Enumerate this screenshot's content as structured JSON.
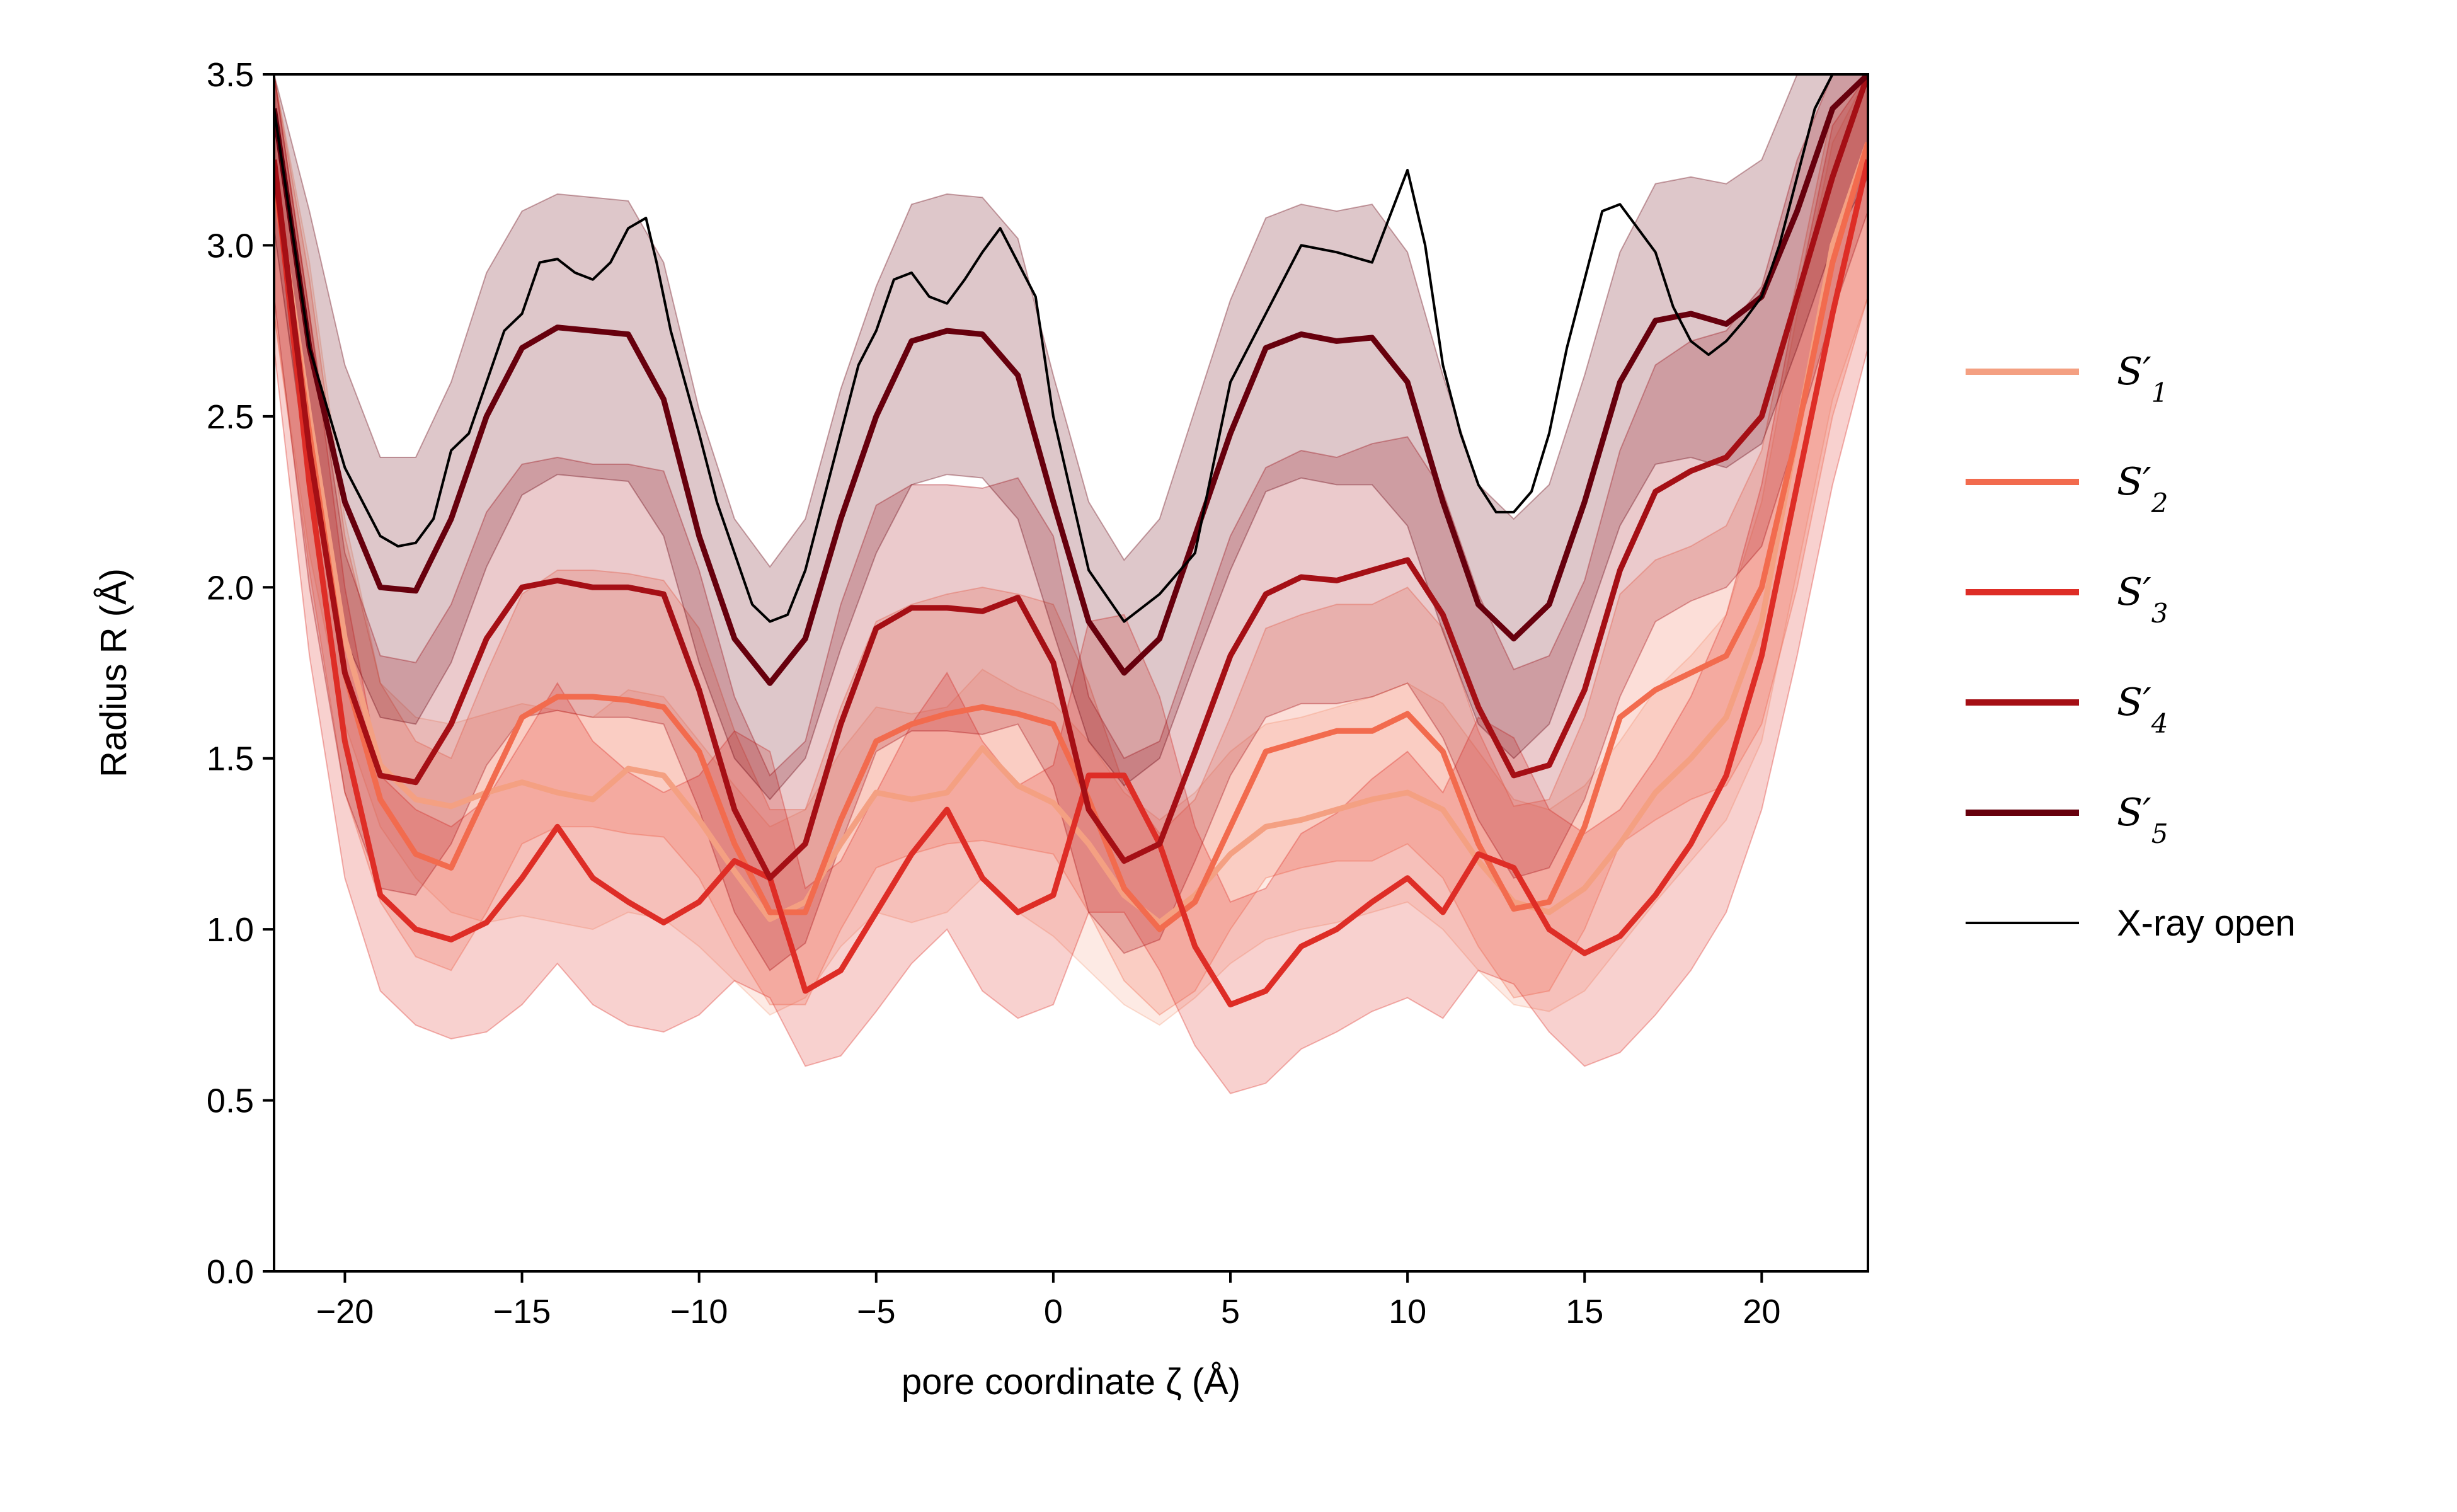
{
  "chart_data": {
    "type": "line",
    "xlabel": "pore coordinate ζ (Å)",
    "ylabel": "Radius R (Å)",
    "xlim": [
      -22,
      23
    ],
    "ylim": [
      0.0,
      3.5
    ],
    "xticks": [
      "−20",
      "−15",
      "−10",
      "−5",
      "0",
      "5",
      "10",
      "15",
      "20"
    ],
    "yticks": [
      "0.0",
      "0.5",
      "1.0",
      "1.5",
      "2.0",
      "2.5",
      "3.0",
      "3.5"
    ],
    "grid": false,
    "legend_position": "right",
    "band_alpha": 0.22,
    "series": [
      {
        "name": "S′1",
        "label_main": "S′",
        "label_sub": "1",
        "color": "#f4a082",
        "band": true,
        "x": [
          -22,
          -21,
          -20,
          -19,
          -18,
          -17,
          -16,
          -15,
          -14,
          -13,
          -12,
          -11,
          -10,
          -9,
          -8,
          -7,
          -6,
          -5,
          -4,
          -3,
          -2,
          -1,
          0,
          1,
          2,
          3,
          4,
          5,
          6,
          7,
          8,
          9,
          10,
          11,
          12,
          13,
          14,
          15,
          16,
          17,
          18,
          19,
          20,
          21,
          22,
          23
        ],
        "y": [
          3.2,
          2.5,
          1.85,
          1.48,
          1.38,
          1.36,
          1.4,
          1.43,
          1.4,
          1.38,
          1.47,
          1.45,
          1.32,
          1.17,
          1.03,
          1.08,
          1.25,
          1.4,
          1.38,
          1.4,
          1.53,
          1.42,
          1.37,
          1.25,
          1.1,
          1.02,
          1.1,
          1.22,
          1.3,
          1.32,
          1.35,
          1.38,
          1.4,
          1.35,
          1.2,
          1.08,
          1.05,
          1.12,
          1.25,
          1.4,
          1.5,
          1.62,
          1.9,
          2.45,
          3.0,
          3.3
        ],
        "lower": [
          2.8,
          2.1,
          1.6,
          1.3,
          1.15,
          1.05,
          1.02,
          1.04,
          1.02,
          1.0,
          1.05,
          1.03,
          0.95,
          0.85,
          0.75,
          0.8,
          0.95,
          1.05,
          1.02,
          1.05,
          1.15,
          1.05,
          0.98,
          0.88,
          0.78,
          0.72,
          0.8,
          0.9,
          0.97,
          1.0,
          1.02,
          1.05,
          1.08,
          1.0,
          0.88,
          0.78,
          0.76,
          0.82,
          0.95,
          1.08,
          1.2,
          1.32,
          1.55,
          2.05,
          2.55,
          2.85
        ],
        "upper": [
          3.5,
          2.95,
          2.2,
          1.72,
          1.62,
          1.6,
          1.63,
          1.66,
          1.64,
          1.62,
          1.7,
          1.68,
          1.55,
          1.42,
          1.3,
          1.35,
          1.52,
          1.65,
          1.63,
          1.65,
          1.76,
          1.7,
          1.66,
          1.55,
          1.4,
          1.32,
          1.4,
          1.52,
          1.6,
          1.62,
          1.65,
          1.68,
          1.72,
          1.66,
          1.52,
          1.38,
          1.35,
          1.42,
          1.55,
          1.7,
          1.8,
          1.92,
          2.25,
          2.8,
          3.3,
          3.5
        ]
      },
      {
        "name": "S′2",
        "label_main": "S′",
        "label_sub": "2",
        "color": "#f26b4e",
        "band": true,
        "x": [
          -22,
          -21,
          -20,
          -19,
          -18,
          -17,
          -16,
          -15,
          -14,
          -13,
          -12,
          -11,
          -10,
          -9,
          -8,
          -7,
          -6,
          -5,
          -4,
          -3,
          -2,
          -1,
          0,
          1,
          2,
          3,
          4,
          5,
          6,
          7,
          8,
          9,
          10,
          11,
          12,
          13,
          14,
          15,
          16,
          17,
          18,
          19,
          20,
          21,
          22,
          23
        ],
        "y": [
          3.2,
          2.45,
          1.75,
          1.38,
          1.22,
          1.18,
          1.4,
          1.62,
          1.68,
          1.68,
          1.67,
          1.65,
          1.52,
          1.25,
          1.05,
          1.05,
          1.32,
          1.55,
          1.6,
          1.63,
          1.65,
          1.63,
          1.6,
          1.38,
          1.12,
          1.0,
          1.08,
          1.3,
          1.52,
          1.55,
          1.58,
          1.58,
          1.63,
          1.52,
          1.25,
          1.06,
          1.08,
          1.3,
          1.62,
          1.7,
          1.75,
          1.8,
          2.0,
          2.45,
          2.95,
          3.3
        ],
        "lower": [
          2.8,
          2.05,
          1.4,
          1.08,
          0.92,
          0.88,
          1.05,
          1.25,
          1.3,
          1.3,
          1.28,
          1.27,
          1.15,
          0.95,
          0.78,
          0.78,
          1.0,
          1.18,
          1.22,
          1.25,
          1.26,
          1.24,
          1.22,
          1.05,
          0.85,
          0.75,
          0.82,
          1.0,
          1.15,
          1.18,
          1.2,
          1.2,
          1.25,
          1.15,
          0.95,
          0.8,
          0.82,
          1.0,
          1.25,
          1.32,
          1.38,
          1.42,
          1.6,
          2.0,
          2.5,
          2.85
        ],
        "upper": [
          3.5,
          2.9,
          2.15,
          1.72,
          1.55,
          1.5,
          1.75,
          1.98,
          2.05,
          2.05,
          2.04,
          2.02,
          1.88,
          1.58,
          1.35,
          1.35,
          1.65,
          1.9,
          1.95,
          1.98,
          2.0,
          1.98,
          1.95,
          1.72,
          1.42,
          1.28,
          1.38,
          1.62,
          1.88,
          1.92,
          1.95,
          1.95,
          2.0,
          1.88,
          1.58,
          1.36,
          1.38,
          1.62,
          1.98,
          2.08,
          2.12,
          2.18,
          2.4,
          2.9,
          3.4,
          3.5
        ]
      },
      {
        "name": "S′3",
        "label_main": "S′",
        "label_sub": "3",
        "color": "#de2d26",
        "band": true,
        "x": [
          -22,
          -21,
          -20,
          -19,
          -18,
          -17,
          -16,
          -15,
          -14,
          -13,
          -12,
          -11,
          -10,
          -9,
          -8,
          -7,
          -6,
          -5,
          -4,
          -3,
          -2,
          -1,
          0,
          1,
          2,
          3,
          4,
          5,
          6,
          7,
          8,
          9,
          10,
          11,
          12,
          13,
          14,
          15,
          16,
          17,
          18,
          19,
          20,
          21,
          22,
          23
        ],
        "y": [
          3.25,
          2.3,
          1.55,
          1.1,
          1.0,
          0.97,
          1.02,
          1.15,
          1.3,
          1.15,
          1.08,
          1.02,
          1.08,
          1.2,
          1.15,
          0.82,
          0.88,
          1.05,
          1.22,
          1.35,
          1.15,
          1.05,
          1.1,
          1.45,
          1.45,
          1.25,
          0.95,
          0.78,
          0.82,
          0.95,
          1.0,
          1.08,
          1.15,
          1.05,
          1.22,
          1.18,
          1.0,
          0.93,
          0.98,
          1.1,
          1.25,
          1.45,
          1.8,
          2.3,
          2.8,
          3.25
        ],
        "lower": [
          2.7,
          1.8,
          1.15,
          0.82,
          0.72,
          0.68,
          0.7,
          0.78,
          0.9,
          0.78,
          0.72,
          0.7,
          0.75,
          0.85,
          0.8,
          0.6,
          0.63,
          0.76,
          0.9,
          1.0,
          0.82,
          0.74,
          0.78,
          1.05,
          1.05,
          0.88,
          0.66,
          0.52,
          0.55,
          0.65,
          0.7,
          0.76,
          0.8,
          0.74,
          0.88,
          0.84,
          0.7,
          0.6,
          0.64,
          0.75,
          0.88,
          1.05,
          1.35,
          1.8,
          2.3,
          2.7
        ],
        "upper": [
          3.5,
          2.8,
          2.0,
          1.45,
          1.35,
          1.3,
          1.38,
          1.55,
          1.72,
          1.55,
          1.46,
          1.4,
          1.45,
          1.58,
          1.52,
          1.12,
          1.2,
          1.4,
          1.6,
          1.75,
          1.55,
          1.42,
          1.48,
          1.9,
          1.92,
          1.68,
          1.3,
          1.08,
          1.12,
          1.28,
          1.34,
          1.44,
          1.52,
          1.4,
          1.62,
          1.56,
          1.35,
          1.28,
          1.35,
          1.5,
          1.68,
          1.92,
          2.3,
          2.85,
          3.35,
          3.5
        ]
      },
      {
        "name": "S′4",
        "label_main": "S′",
        "label_sub": "4",
        "color": "#a50f15",
        "band": true,
        "x": [
          -22,
          -21,
          -20,
          -19,
          -18,
          -17,
          -16,
          -15,
          -14,
          -13,
          -12,
          -11,
          -10,
          -9,
          -8,
          -7,
          -6,
          -5,
          -4,
          -3,
          -2,
          -1,
          0,
          1,
          2,
          3,
          4,
          5,
          6,
          7,
          8,
          9,
          10,
          11,
          12,
          13,
          14,
          15,
          16,
          17,
          18,
          19,
          20,
          21,
          22,
          23
        ],
        "y": [
          3.25,
          2.4,
          1.75,
          1.45,
          1.43,
          1.6,
          1.85,
          2.0,
          2.02,
          2.0,
          2.0,
          1.98,
          1.7,
          1.35,
          1.15,
          1.25,
          1.6,
          1.88,
          1.94,
          1.94,
          1.93,
          1.97,
          1.78,
          1.35,
          1.2,
          1.25,
          1.52,
          1.8,
          1.98,
          2.03,
          2.02,
          2.05,
          2.08,
          1.92,
          1.65,
          1.45,
          1.48,
          1.7,
          2.05,
          2.28,
          2.34,
          2.38,
          2.5,
          2.85,
          3.2,
          3.5
        ],
        "lower": [
          2.85,
          2.0,
          1.4,
          1.12,
          1.1,
          1.25,
          1.48,
          1.62,
          1.64,
          1.62,
          1.62,
          1.6,
          1.35,
          1.05,
          0.88,
          0.96,
          1.25,
          1.52,
          1.58,
          1.58,
          1.57,
          1.6,
          1.42,
          1.05,
          0.93,
          0.97,
          1.2,
          1.45,
          1.62,
          1.66,
          1.66,
          1.68,
          1.72,
          1.56,
          1.32,
          1.15,
          1.18,
          1.38,
          1.68,
          1.9,
          1.96,
          2.0,
          2.12,
          2.45,
          2.8,
          3.1
        ],
        "upper": [
          3.5,
          2.8,
          2.1,
          1.8,
          1.78,
          1.95,
          2.22,
          2.36,
          2.38,
          2.36,
          2.36,
          2.34,
          2.05,
          1.68,
          1.45,
          1.55,
          1.95,
          2.24,
          2.3,
          2.3,
          2.29,
          2.32,
          2.15,
          1.68,
          1.5,
          1.55,
          1.85,
          2.15,
          2.35,
          2.4,
          2.38,
          2.42,
          2.44,
          2.28,
          1.98,
          1.76,
          1.8,
          2.02,
          2.4,
          2.65,
          2.72,
          2.75,
          2.88,
          3.25,
          3.5,
          3.5
        ]
      },
      {
        "name": "S′5",
        "label_main": "S′",
        "label_sub": "5",
        "color": "#67000d",
        "band": true,
        "x": [
          -22,
          -21,
          -20,
          -19,
          -18,
          -17,
          -16,
          -15,
          -14,
          -13,
          -12,
          -11,
          -10,
          -9,
          -8,
          -7,
          -6,
          -5,
          -4,
          -3,
          -2,
          -1,
          0,
          1,
          2,
          3,
          4,
          5,
          6,
          7,
          8,
          9,
          10,
          11,
          12,
          13,
          14,
          15,
          16,
          17,
          18,
          19,
          20,
          21,
          22,
          23
        ],
        "y": [
          3.4,
          2.7,
          2.25,
          2.0,
          1.99,
          2.2,
          2.5,
          2.7,
          2.76,
          2.75,
          2.74,
          2.55,
          2.15,
          1.85,
          1.72,
          1.85,
          2.2,
          2.5,
          2.72,
          2.75,
          2.74,
          2.62,
          2.25,
          1.9,
          1.75,
          1.85,
          2.15,
          2.45,
          2.7,
          2.74,
          2.72,
          2.73,
          2.6,
          2.25,
          1.95,
          1.85,
          1.95,
          2.25,
          2.6,
          2.78,
          2.8,
          2.77,
          2.85,
          3.1,
          3.4,
          3.5
        ],
        "lower": [
          3.05,
          2.3,
          1.85,
          1.62,
          1.6,
          1.78,
          2.06,
          2.27,
          2.33,
          2.32,
          2.31,
          2.15,
          1.78,
          1.5,
          1.38,
          1.5,
          1.82,
          2.1,
          2.3,
          2.33,
          2.32,
          2.2,
          1.87,
          1.55,
          1.42,
          1.5,
          1.78,
          2.05,
          2.28,
          2.32,
          2.3,
          2.3,
          2.18,
          1.87,
          1.6,
          1.5,
          1.6,
          1.88,
          2.18,
          2.36,
          2.38,
          2.35,
          2.42,
          2.7,
          3.0,
          3.2
        ],
        "upper": [
          3.5,
          3.1,
          2.65,
          2.38,
          2.38,
          2.6,
          2.92,
          3.1,
          3.15,
          3.14,
          3.13,
          2.95,
          2.52,
          2.2,
          2.06,
          2.2,
          2.58,
          2.88,
          3.12,
          3.15,
          3.14,
          3.02,
          2.62,
          2.25,
          2.08,
          2.2,
          2.52,
          2.84,
          3.08,
          3.12,
          3.1,
          3.12,
          2.98,
          2.62,
          2.3,
          2.2,
          2.3,
          2.62,
          2.98,
          3.18,
          3.2,
          3.18,
          3.25,
          3.5,
          3.5,
          3.5
        ]
      },
      {
        "name": "X-ray open",
        "label_main": "X-ray open",
        "label_sub": "",
        "color": "#000000",
        "band": false,
        "x": [
          -22,
          -21,
          -20,
          -19,
          -18.5,
          -18,
          -17.5,
          -17,
          -16.5,
          -16,
          -15.5,
          -15,
          -14.5,
          -14,
          -13.5,
          -13,
          -12.5,
          -12,
          -11.5,
          -11.2,
          -10.8,
          -10,
          -9.5,
          -9,
          -8.5,
          -8,
          -7.5,
          -7,
          -6.5,
          -6,
          -5.5,
          -5,
          -4.5,
          -4,
          -3.5,
          -3,
          -2.5,
          -2,
          -1.5,
          -1,
          -0.5,
          0,
          1,
          2,
          3,
          4,
          5,
          6,
          7,
          8,
          9,
          10,
          10.5,
          11,
          11.5,
          12,
          12.5,
          13,
          13.5,
          14,
          14.5,
          15,
          15.5,
          16,
          16.5,
          17,
          17.5,
          18,
          18.5,
          19,
          19.5,
          20,
          20.5,
          21,
          21.5,
          22,
          23
        ],
        "y": [
          3.4,
          2.7,
          2.35,
          2.15,
          2.12,
          2.13,
          2.2,
          2.4,
          2.45,
          2.6,
          2.75,
          2.8,
          2.95,
          2.96,
          2.92,
          2.9,
          2.95,
          3.05,
          3.08,
          2.95,
          2.75,
          2.45,
          2.25,
          2.1,
          1.95,
          1.9,
          1.92,
          2.05,
          2.25,
          2.45,
          2.65,
          2.75,
          2.9,
          2.92,
          2.85,
          2.83,
          2.9,
          2.98,
          3.05,
          2.95,
          2.85,
          2.5,
          2.05,
          1.9,
          1.98,
          2.1,
          2.6,
          2.8,
          3.0,
          2.98,
          2.95,
          3.22,
          3.0,
          2.65,
          2.45,
          2.3,
          2.22,
          2.22,
          2.28,
          2.45,
          2.7,
          2.9,
          3.1,
          3.12,
          3.05,
          2.98,
          2.82,
          2.72,
          2.68,
          2.72,
          2.78,
          2.85,
          3.0,
          3.2,
          3.4,
          3.5,
          3.5
        ]
      }
    ]
  }
}
